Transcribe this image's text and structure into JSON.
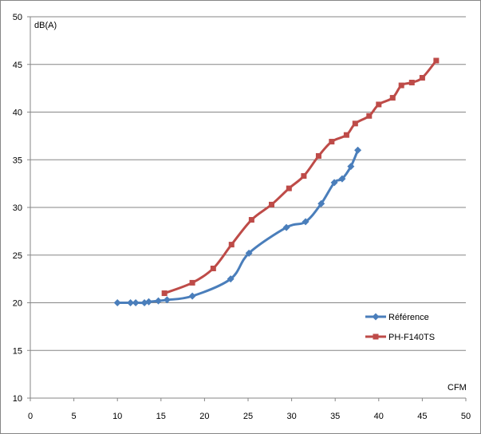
{
  "chart_data": {
    "type": "line",
    "title": "",
    "xlabel": "CFM",
    "ylabel": "dB(A)",
    "xlim": [
      0,
      50
    ],
    "ylim": [
      10,
      50
    ],
    "xticks": [
      0,
      5,
      10,
      15,
      20,
      25,
      30,
      35,
      40,
      45,
      50
    ],
    "yticks": [
      10,
      15,
      20,
      25,
      30,
      35,
      40,
      45,
      50
    ],
    "grid": "horizontal",
    "legend_position": "right",
    "series": [
      {
        "name": "Référence",
        "color": "#4a7ebb",
        "marker": "diamond",
        "points": [
          [
            10.0,
            20.0
          ],
          [
            11.5,
            20.0
          ],
          [
            12.1,
            20.0
          ],
          [
            13.1,
            20.0
          ],
          [
            13.6,
            20.1
          ],
          [
            14.7,
            20.2
          ],
          [
            15.7,
            20.3
          ],
          [
            18.6,
            20.7
          ],
          [
            23.0,
            22.5
          ],
          [
            25.1,
            25.2
          ],
          [
            29.4,
            27.9
          ],
          [
            31.6,
            28.5
          ],
          [
            33.4,
            30.4
          ],
          [
            34.9,
            32.6
          ],
          [
            35.8,
            33.0
          ],
          [
            36.8,
            34.3
          ],
          [
            37.6,
            36.0
          ]
        ]
      },
      {
        "name": "PH-F140TS",
        "color": "#be4b48",
        "marker": "square",
        "points": [
          [
            15.4,
            21.0
          ],
          [
            18.6,
            22.1
          ],
          [
            21.0,
            23.6
          ],
          [
            23.1,
            26.1
          ],
          [
            25.4,
            28.7
          ],
          [
            27.7,
            30.3
          ],
          [
            29.7,
            32.0
          ],
          [
            31.4,
            33.3
          ],
          [
            33.1,
            35.4
          ],
          [
            34.6,
            36.9
          ],
          [
            36.3,
            37.6
          ],
          [
            37.3,
            38.8
          ],
          [
            38.9,
            39.6
          ],
          [
            40.0,
            40.8
          ],
          [
            41.6,
            41.5
          ],
          [
            42.6,
            42.8
          ],
          [
            43.8,
            43.1
          ],
          [
            45.0,
            43.6
          ],
          [
            46.6,
            45.4
          ]
        ]
      }
    ]
  }
}
